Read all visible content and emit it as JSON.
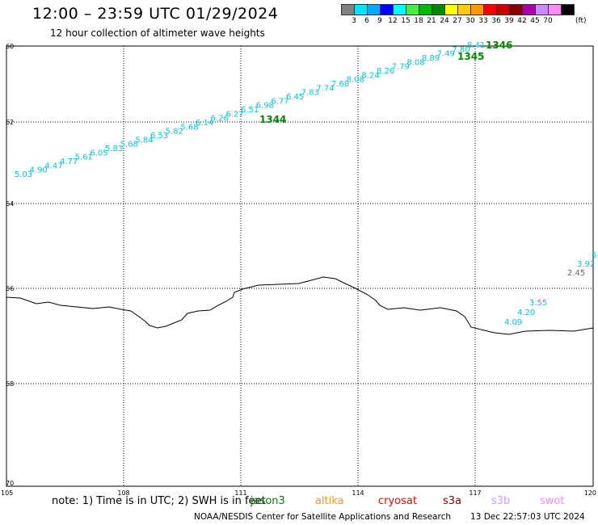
{
  "header": {
    "title": "12:00 – 23:59 UTC 01/29/2024",
    "subtitle": "12 hour collection of altimeter wave heights"
  },
  "colorbar": {
    "colors": [
      "#808080",
      "#00e5ff",
      "#00aaff",
      "#0000ff",
      "#00ffff",
      "#44ee44",
      "#00bb00",
      "#008800",
      "#ffff00",
      "#ffcc00",
      "#ff9900",
      "#ff0000",
      "#cc0000",
      "#880000",
      "#aa00aa",
      "#cc88ff",
      "#ff88ff",
      "#000000"
    ],
    "labels": [
      "3",
      "6",
      "9",
      "12",
      "15",
      "18",
      "21",
      "24",
      "27",
      "30",
      "33",
      "36",
      "39",
      "42",
      "45",
      "70"
    ],
    "unit": "(ft)"
  },
  "map": {
    "lat_labels": [
      "60",
      "62",
      "64",
      "66",
      "68",
      "70"
    ],
    "lon_labels": [
      "105",
      "108",
      "111",
      "114",
      "117",
      "120"
    ],
    "track_1344_swh": [
      "5.03",
      "4.90",
      "4.47",
      "4.77",
      "5.61",
      "6.05",
      "5.83",
      "5.68",
      "5.84",
      "6.53",
      "5.82",
      "5.68",
      "6.14",
      "6.26",
      "6.27",
      "6.51",
      "6.98",
      "6.77",
      "6.45",
      "7.83",
      "7.74",
      "7.68",
      "8.08",
      "8.24",
      "8.26",
      "7.79",
      "8.08",
      "8.89",
      "7.49",
      "7.80",
      "8.41"
    ],
    "pass_labels": [
      "1344",
      "1345",
      "1346"
    ],
    "track_right_swh": [
      "5.",
      "3.92"
    ],
    "gray_swh": "2.45",
    "track_south_swh": [
      "3.55",
      "4.20",
      "4.09"
    ]
  },
  "footer": {
    "note": "note: 1) Time is in UTC; 2) SWH is in feet",
    "satellites": [
      {
        "name": "jason3",
        "color": "#008800"
      },
      {
        "name": "altika",
        "color": "#ff9900"
      },
      {
        "name": "cryosat",
        "color": "#ff0000"
      },
      {
        "name": "s3a",
        "color": "#880000"
      },
      {
        "name": "s3b",
        "color": "#cc99ff"
      },
      {
        "name": "swot",
        "color": "#ff88ff"
      }
    ],
    "credit": "NOAA/NESDIS Center for Satellite Applications and Research",
    "timestamp": "13 Dec 22:57:03 UTC 2024"
  },
  "colors": {
    "track": "#00c8e0",
    "pass_label": "#008800",
    "gray_value": "#666666",
    "coast": "#000000"
  }
}
